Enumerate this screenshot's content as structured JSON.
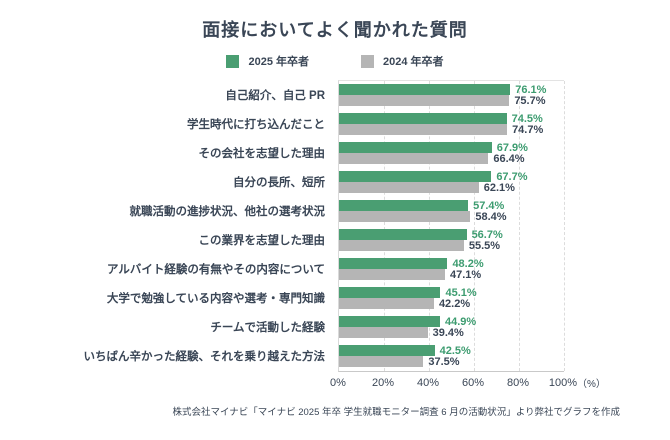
{
  "title": "面接においてよく聞かれた質問",
  "legend": [
    {
      "label": "2025 年卒者",
      "color": "#4a9e72"
    },
    {
      "label": "2024 年卒者",
      "color": "#b5b5b5"
    }
  ],
  "colors": {
    "series_2025": "#4a9e72",
    "series_2024": "#b5b5b5",
    "value_text_2025": "#3d9c70",
    "value_text_2024": "#3a4656",
    "title_text": "#3a4656",
    "grid": "#dcdcdc"
  },
  "axis_unit": "（%）",
  "footer": "株式会社マイナビ「マイナビ 2025 年卒 学生就職モニター調査 6 月の活動状況」より弊社でグラフを作成",
  "chart_data": {
    "type": "bar",
    "orientation": "horizontal",
    "title": "面接においてよく聞かれた質問",
    "categories": [
      "自己紹介、自己 PR",
      "学生時代に打ち込んだこと",
      "その会社を志望した理由",
      "自分の長所、短所",
      "就職活動の進捗状況、他社の選考状況",
      "この業界を志望した理由",
      "アルバイト経験の有無やその内容について",
      "大学で勉強している内容や選考・専門知識",
      "チームで活動した経験",
      "いちばん辛かった経験、それを乗り越えた方法"
    ],
    "series": [
      {
        "name": "2025 年卒者",
        "color": "#4a9e72",
        "values": [
          76.1,
          74.5,
          67.9,
          67.7,
          57.4,
          56.7,
          48.2,
          45.1,
          44.9,
          42.5
        ]
      },
      {
        "name": "2024 年卒者",
        "color": "#b5b5b5",
        "values": [
          75.7,
          74.7,
          66.4,
          62.1,
          58.4,
          55.5,
          47.1,
          42.2,
          39.4,
          37.5
        ]
      }
    ],
    "xlim": [
      0,
      100
    ],
    "xticks": [
      "0%",
      "20%",
      "40%",
      "60%",
      "80%",
      "100%"
    ],
    "grid": "vertical-dashed",
    "legend_position": "top",
    "value_labels": "outside-end"
  }
}
